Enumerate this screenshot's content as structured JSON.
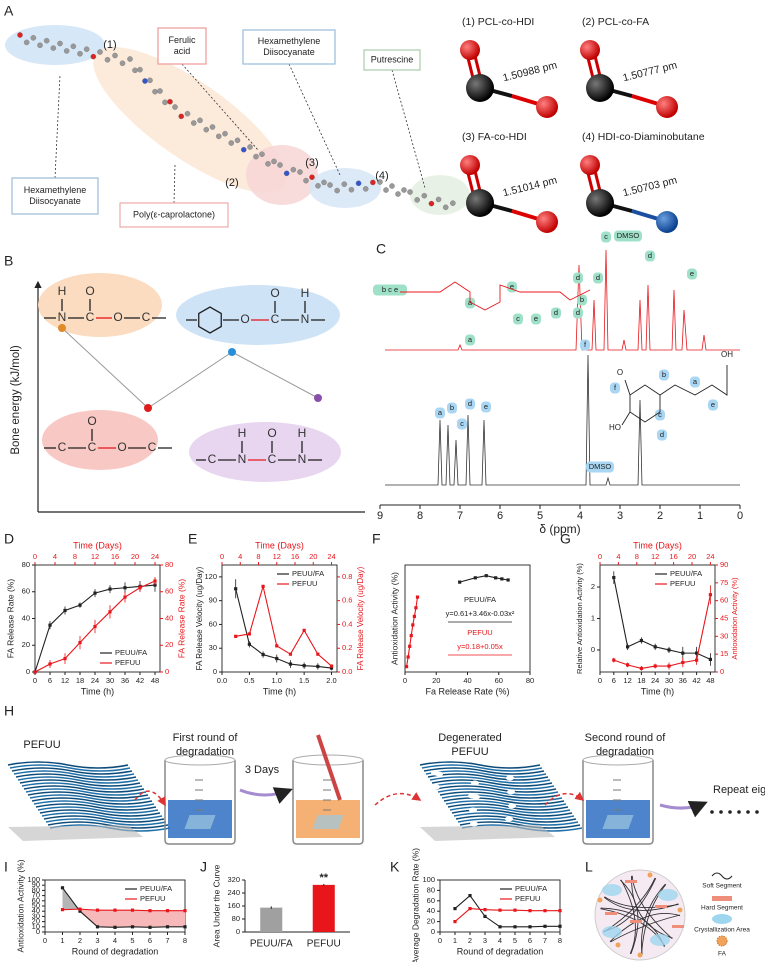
{
  "panel_labels": [
    "A",
    "B",
    "C",
    "D",
    "E",
    "F",
    "G",
    "H",
    "I",
    "J",
    "K",
    "L"
  ],
  "panel_a": {
    "labels": [
      "(1)",
      "(2)",
      "(3)",
      "(4)"
    ],
    "callouts": [
      [
        "Ferulic",
        "acid"
      ],
      [
        "Hexamethylene",
        "Diisocyanate"
      ],
      [
        "Putrescine"
      ],
      [
        "Hexamethylene",
        "Diisocyanate"
      ],
      [
        "Poly(ε-caprolactone)"
      ]
    ],
    "bonds": [
      {
        "title": "(1)  PCL-co-HDI",
        "length": "1.50988 pm"
      },
      {
        "title": "(2)  PCL-co-FA",
        "length": "1.50777 pm"
      },
      {
        "title": "(3)  FA-co-HDI",
        "length": "1.51014 pm"
      },
      {
        "title": "(4)  HDI-co-Diaminobutane",
        "length": "1.50703 pm"
      }
    ]
  },
  "panel_b": {
    "ylabel": "Bone energy (kJ/mol)",
    "structures": [
      {
        "main": [
          "N",
          "C",
          "O",
          "C"
        ],
        "above": [
          "H",
          "O"
        ]
      },
      {
        "main": [
          "O",
          "C",
          "N"
        ],
        "above": [
          "O",
          "H"
        ]
      },
      {
        "main": [
          "C",
          "C",
          "O",
          "C"
        ],
        "above": [
          "O"
        ]
      },
      {
        "main": [
          "C",
          "N",
          "C",
          "N"
        ],
        "above": [
          "H",
          "O",
          "H"
        ]
      }
    ]
  },
  "panel_c": {
    "xlabel": "δ (ppm)",
    "xticks": [
      9,
      8,
      7,
      6,
      5,
      4,
      3,
      2,
      1,
      0
    ],
    "top_peaks": [
      "a",
      "b",
      "c",
      "DMSO",
      "d",
      "e"
    ],
    "top_structure_labels": [
      "b c e",
      "a",
      "e",
      "d",
      "d",
      "c",
      "e",
      "d",
      "d"
    ],
    "bottom_peaks": [
      "a",
      "b",
      "c",
      "d",
      "e",
      "f",
      "DMSO"
    ],
    "bottom_structure_labels": [
      "b",
      "a",
      "f",
      "c",
      "e",
      "d",
      "OH",
      "O",
      "HO"
    ]
  },
  "panel_h": {
    "steps": [
      [
        "PEFUU"
      ],
      [
        "First round of",
        "degradation"
      ],
      [
        "3 Days"
      ],
      [
        "Degenerated",
        "PEFUU"
      ],
      [
        "Second round of",
        "degradation"
      ],
      [
        "Repeat eight times"
      ]
    ]
  },
  "panel_l": {
    "legend": [
      "Soft Segment",
      "Hard Segment",
      "Crystallization Area",
      "FA"
    ]
  },
  "chart_data": [
    {
      "type": "line",
      "xlabel": "Time (h)",
      "x2label": "Time (Days)",
      "ylabel": "FA Release Rate (%)",
      "y2label": "FA Release Rate (%)",
      "xlim": [
        0,
        50
      ],
      "xticks": [
        0,
        6,
        12,
        18,
        24,
        30,
        36,
        42,
        48
      ],
      "x2lim": [
        0,
        25
      ],
      "x2ticks": [
        0,
        4,
        8,
        12,
        16,
        20,
        24
      ],
      "ylim": [
        0,
        80
      ],
      "yticks": [
        0,
        20,
        40,
        60,
        80
      ],
      "y2lim": [
        0,
        80
      ],
      "y2ticks": [
        0,
        20,
        40,
        60,
        80
      ],
      "legend": "lower right",
      "series": [
        {
          "name": "PEUU/FA",
          "color": "#222222",
          "x": [
            0,
            6,
            12,
            18,
            24,
            30,
            36,
            42,
            48
          ],
          "values": [
            0,
            35,
            46,
            50,
            59,
            62,
            63,
            64,
            65
          ],
          "errors": [
            0,
            3,
            3,
            2,
            3,
            3,
            4,
            4,
            5
          ]
        },
        {
          "name": "PEFUU",
          "color": "#e8161b",
          "axis": "y2",
          "xaxis": "x2",
          "x": [
            0,
            3,
            6,
            9,
            12,
            15,
            18,
            21,
            24
          ],
          "values": [
            0,
            6,
            10,
            22,
            34,
            45,
            56,
            63,
            68
          ],
          "errors": [
            0,
            3,
            4,
            5,
            5,
            5,
            4,
            3,
            3
          ]
        }
      ]
    },
    {
      "type": "line",
      "xlabel": "Time (h)",
      "x2label": "Time (Days)",
      "ylabel": "FA Release Velocity (ug/Day)",
      "y2label": "FA Release Velocity (ug/Day)",
      "xlim": [
        0,
        2.1
      ],
      "xticks": [
        {
          "value": 0,
          "label": "0.0"
        },
        0.5,
        {
          "value": 1,
          "label": "1.0"
        },
        1.5,
        {
          "value": 2,
          "label": "2.0"
        }
      ],
      "x2lim": [
        0,
        25.2
      ],
      "x2ticks": [
        0,
        4,
        8,
        12,
        16,
        20,
        24
      ],
      "ylim": [
        0,
        135
      ],
      "yticks": [
        0,
        30,
        60,
        90,
        120
      ],
      "y2lim": [
        0,
        0.9
      ],
      "y2ticks": [
        {
          "value": 0,
          "label": "0.0"
        },
        0.2,
        0.4,
        0.6,
        0.8
      ],
      "legend": "upper right",
      "series": [
        {
          "name": "PEUU/FA",
          "color": "#222222",
          "x": [
            0.25,
            0.5,
            0.75,
            1,
            1.25,
            1.5,
            1.75,
            2
          ],
          "values": [
            105,
            35,
            22,
            17,
            10,
            8,
            7,
            5
          ],
          "errors": [
            12,
            4,
            4,
            5,
            5,
            4,
            4,
            3
          ]
        },
        {
          "name": "PEFUU",
          "color": "#e8161b",
          "axis": "y2",
          "xaxis": "x2",
          "x": [
            3,
            6,
            9,
            12,
            15,
            18,
            21,
            24
          ],
          "values": [
            0.3,
            0.32,
            0.72,
            0.22,
            0.15,
            0.35,
            0.15,
            0.05
          ]
        }
      ]
    },
    {
      "type": "scatter",
      "xlabel": "Fa Release Rate (%)",
      "ylabel": "Antioxidation Activity (%)",
      "xlim": [
        0,
        80
      ],
      "xticks": [
        0,
        20,
        40,
        60,
        80
      ],
      "ylim": [
        0,
        100
      ],
      "yticks": [],
      "annotations": [
        "PEUU/FA",
        "y=0.61+3.46x-0.03x²",
        "PEFUU",
        "y=0.18+0.05x"
      ],
      "series": [
        {
          "name": "PEUU/FA",
          "color": "#222222",
          "x": [
            35,
            45,
            52,
            58,
            62,
            66
          ],
          "values": [
            84,
            88,
            90,
            88,
            87,
            86
          ]
        },
        {
          "name": "PEFUU",
          "color": "#e8161b",
          "x": [
            1,
            2,
            3,
            4,
            5,
            6,
            7,
            8
          ],
          "values": [
            5,
            14,
            24,
            34,
            44,
            52,
            60,
            70
          ]
        }
      ]
    },
    {
      "type": "line",
      "xlabel": "Time (h)",
      "x2label": "Time (Days)",
      "ylabel": "Relative Antioxidation Activity (%)",
      "y2label": "Antioxidation Activity (%)",
      "xlim": [
        0,
        50
      ],
      "xticks": [
        0,
        6,
        12,
        18,
        24,
        30,
        36,
        42,
        48
      ],
      "x2lim": [
        0,
        25
      ],
      "x2ticks": [
        0,
        4,
        8,
        12,
        16,
        20,
        24
      ],
      "ylim": [
        -0.7,
        2.7
      ],
      "yticks": [
        0,
        1,
        2
      ],
      "y2lim": [
        0,
        90
      ],
      "y2ticks": [
        0,
        15,
        30,
        45,
        60,
        75,
        90
      ],
      "legend": "upper right",
      "series": [
        {
          "name": "PEUU/FA",
          "color": "#222222",
          "x": [
            6,
            12,
            18,
            24,
            30,
            36,
            42,
            48
          ],
          "values": [
            2.3,
            0.1,
            0.3,
            0.1,
            0,
            -0.1,
            -0.1,
            -0.3
          ],
          "errors": [
            0.2,
            0.1,
            0.1,
            0.1,
            0.1,
            0.2,
            0.2,
            0.2
          ]
        },
        {
          "name": "PEFUU",
          "color": "#e8161b",
          "axis": "y2",
          "xaxis": "x2",
          "x": [
            3,
            6,
            9,
            12,
            15,
            18,
            21,
            24
          ],
          "values": [
            10,
            6,
            3,
            5,
            5,
            8,
            10,
            65
          ],
          "errors": [
            2,
            2,
            2,
            2,
            3,
            4,
            4,
            8
          ]
        }
      ]
    },
    {
      "type": "line",
      "xlabel": "Round of degradation",
      "ylabel": "Antioxidation Activity (%)",
      "xlim": [
        0,
        8
      ],
      "xticks": [
        0,
        1,
        2,
        3,
        4,
        5,
        6,
        7,
        8
      ],
      "ylim": [
        0,
        100
      ],
      "yticks": [
        0,
        10,
        20,
        30,
        40,
        50,
        60,
        70,
        80,
        90,
        100
      ],
      "legend": "upper right",
      "fill_between": true,
      "series": [
        {
          "name": "PEUU/FA",
          "color": "#222222",
          "x": [
            1,
            2,
            3,
            4,
            5,
            6,
            7,
            8
          ],
          "values": [
            85,
            40,
            10,
            9,
            10,
            9,
            10,
            10
          ]
        },
        {
          "name": "PEFUU",
          "color": "#e8161b",
          "x": [
            1,
            2,
            3,
            4,
            5,
            6,
            7,
            8
          ],
          "values": [
            43,
            44,
            42,
            42,
            42,
            41,
            41,
            41
          ],
          "errors": [
            2,
            3,
            2,
            2,
            1,
            1,
            1,
            1
          ]
        }
      ]
    },
    {
      "type": "bar",
      "ylabel": "Area Under the Curve",
      "categories": [
        "PEUU/FA",
        "PEFUU"
      ],
      "values": [
        150,
        290
      ],
      "errors": [
        8,
        6
      ],
      "colors": [
        "#a0a0a0",
        "#e8161b"
      ],
      "ylim": [
        0,
        320
      ],
      "yticks": [
        0,
        80,
        160,
        240,
        320
      ],
      "annotations": [
        "**"
      ]
    },
    {
      "type": "line",
      "xlabel": "Round of degradation",
      "ylabel": "Average Degradation Rate (%)",
      "xlim": [
        0,
        8
      ],
      "xticks": [
        0,
        1,
        2,
        3,
        4,
        5,
        6,
        7,
        8
      ],
      "ylim": [
        0,
        100
      ],
      "yticks": [
        0,
        20,
        40,
        60,
        80,
        100
      ],
      "legend": "upper right",
      "series": [
        {
          "name": "PEUU/FA",
          "color": "#222222",
          "x": [
            1,
            2,
            3,
            4,
            5,
            6,
            7,
            8
          ],
          "values": [
            45,
            70,
            30,
            10,
            10,
            10,
            11,
            11
          ]
        },
        {
          "name": "PEFUU",
          "color": "#e8161b",
          "x": [
            1,
            2,
            3,
            4,
            5,
            6,
            7,
            8
          ],
          "values": [
            20,
            45,
            43,
            42,
            42,
            41,
            41,
            41
          ]
        }
      ]
    }
  ]
}
